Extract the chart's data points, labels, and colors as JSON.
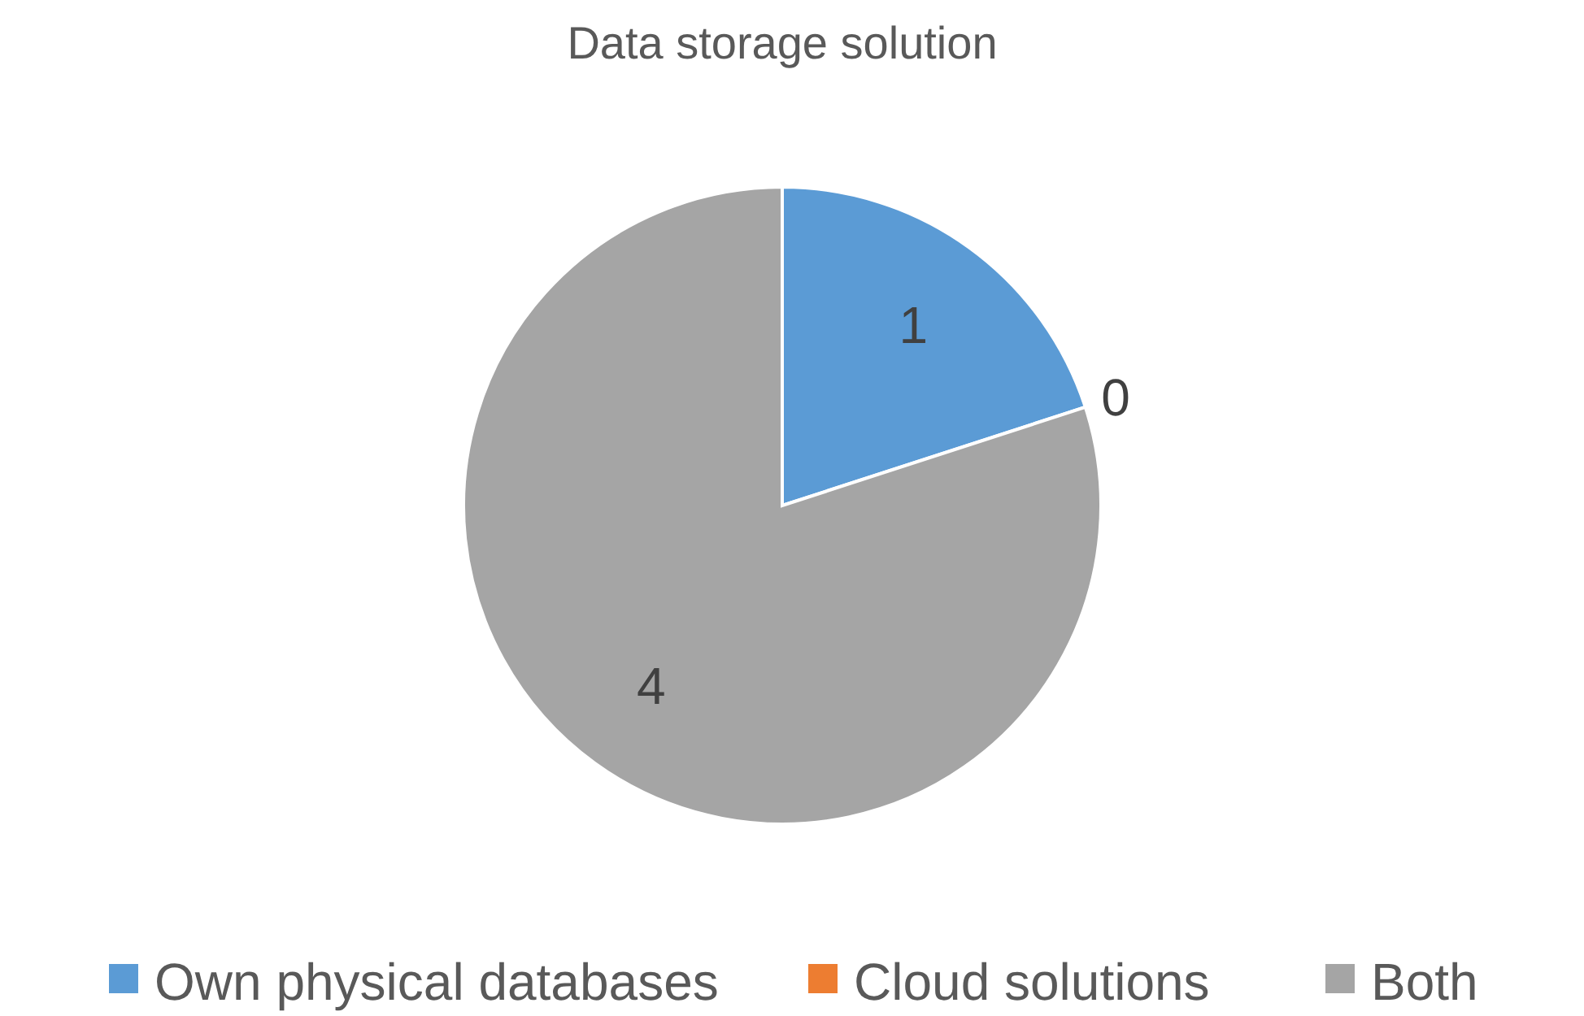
{
  "chart_data": {
    "type": "pie",
    "title": "Data storage solution",
    "categories": [
      "Own physical databases",
      "Cloud solutions",
      "Both"
    ],
    "values": [
      1,
      0,
      4
    ],
    "colors": [
      "#5b9bd5",
      "#ed7d31",
      "#a5a5a5"
    ],
    "value_labels": [
      "1",
      "0",
      "4"
    ],
    "legend": "bottom"
  }
}
